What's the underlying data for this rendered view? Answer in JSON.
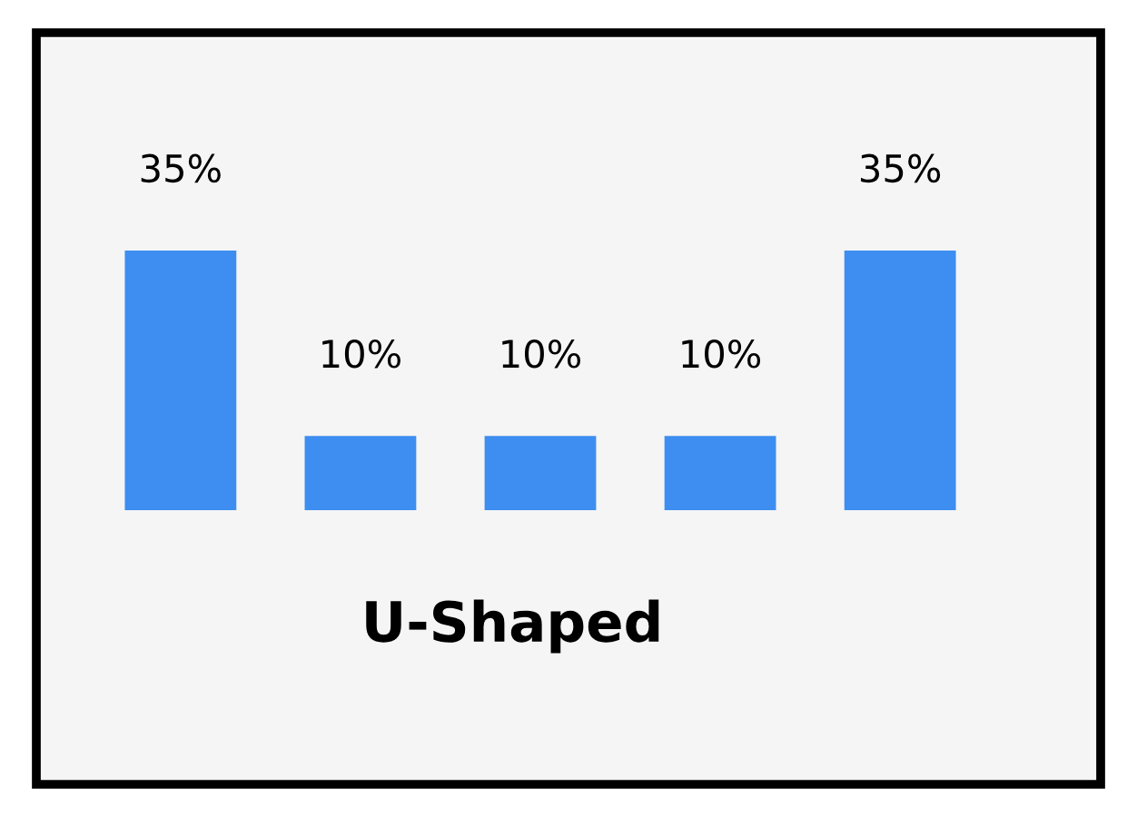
{
  "chart_data": {
    "type": "bar",
    "title": "U-Shaped",
    "categories": [
      null,
      null,
      null,
      null,
      null
    ],
    "values": [
      35,
      10,
      10,
      10,
      35
    ],
    "color": "#3d8ef0",
    "data_labels": true,
    "value_labels": [
      "35%",
      "10%",
      "10%",
      "10%",
      "35%"
    ]
  }
}
